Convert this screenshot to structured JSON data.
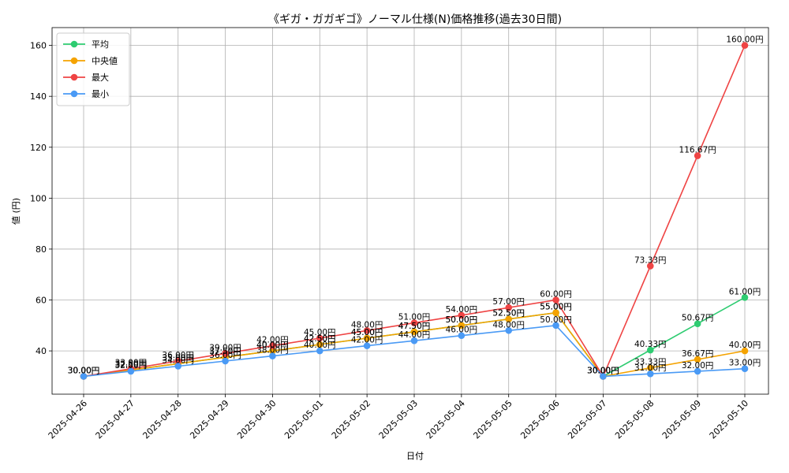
{
  "chart_data": {
    "type": "line",
    "title": "《ギガ・ガガギゴ》ノーマル仕様(N)価格推移(過去30日間)",
    "xlabel": "日付",
    "ylabel": "値 (円)",
    "x": [
      "2025-04-26",
      "2025-04-27",
      "2025-04-28",
      "2025-04-29",
      "2025-04-30",
      "2025-05-01",
      "2025-05-02",
      "2025-05-03",
      "2025-05-04",
      "2025-05-05",
      "2025-05-06",
      "2025-05-07",
      "2025-05-08",
      "2025-05-09",
      "2025-05-10"
    ],
    "ylim": [
      23,
      167
    ],
    "yticks": [
      40,
      60,
      80,
      100,
      120,
      140,
      160
    ],
    "grid": true,
    "legend_position": "top-left",
    "value_suffix": "円",
    "series": [
      {
        "name": "平均",
        "color": "#2ecc71",
        "values": [
          30,
          32.5,
          35,
          37.5,
          40,
          42.5,
          45,
          47.5,
          50,
          52.5,
          55,
          30,
          40.33,
          50.67,
          61
        ]
      },
      {
        "name": "中央値",
        "color": "#f5a300",
        "values": [
          30,
          32.5,
          35,
          37.5,
          40,
          42.5,
          45,
          47.5,
          50,
          52.5,
          55,
          30,
          33.33,
          36.67,
          40
        ]
      },
      {
        "name": "最大",
        "color": "#ef4444",
        "values": [
          30,
          33,
          36,
          39,
          42,
          45,
          48,
          51,
          54,
          57,
          60,
          30,
          73.33,
          116.67,
          160
        ]
      },
      {
        "name": "最小",
        "color": "#4a9af5",
        "values": [
          30,
          32,
          34,
          36,
          38,
          40,
          42,
          44,
          46,
          48,
          50,
          30,
          31,
          32,
          33
        ]
      }
    ]
  }
}
